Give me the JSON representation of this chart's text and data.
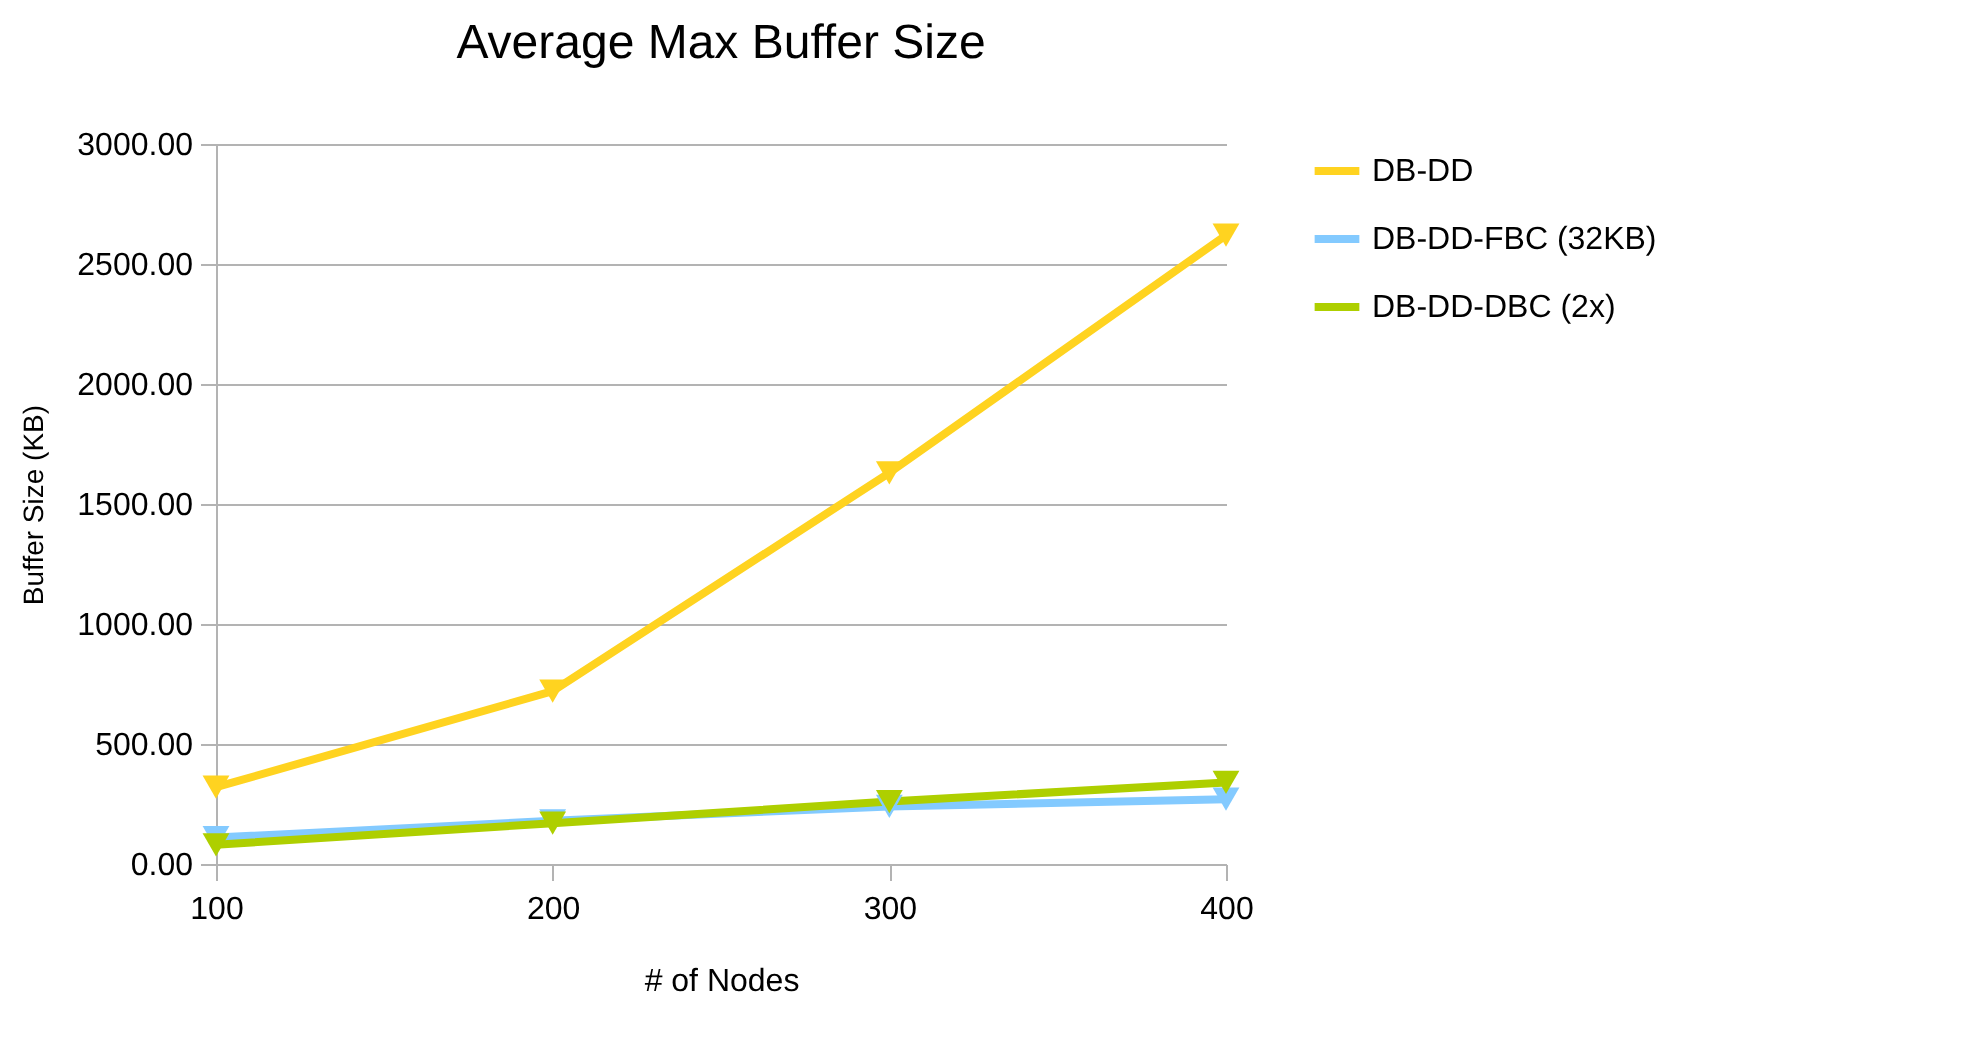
{
  "chart_data": {
    "type": "line",
    "title": "Average Max Buffer Size",
    "xlabel": "# of Nodes",
    "ylabel": "Buffer Size (KB)",
    "x": [
      100,
      200,
      300,
      400
    ],
    "series": [
      {
        "name": "DB-DD",
        "color": "#ffd320",
        "values": [
          320,
          720,
          1630,
          2620
        ]
      },
      {
        "name": "DB-DD-FBC (32KB)",
        "color": "#83caff",
        "values": [
          110,
          180,
          240,
          270
        ]
      },
      {
        "name": "DB-DD-DBC (2x)",
        "color": "#aecf00",
        "values": [
          80,
          170,
          260,
          340
        ]
      }
    ],
    "xlim": [
      100,
      400
    ],
    "xticks": [
      100,
      200,
      300,
      400
    ],
    "ylim": [
      0,
      3000
    ],
    "yticks": [
      {
        "value": 0,
        "label": "0.00"
      },
      {
        "value": 500,
        "label": "500.00"
      },
      {
        "value": 1000,
        "label": "1000.00"
      },
      {
        "value": 1500,
        "label": "1500.00"
      },
      {
        "value": 2000,
        "label": "2000.00"
      },
      {
        "value": 2500,
        "label": "2500.00"
      },
      {
        "value": 3000,
        "label": "3000.00"
      }
    ],
    "grid": "y",
    "legend": "right",
    "marker": "triangle",
    "line_style": "solid"
  }
}
